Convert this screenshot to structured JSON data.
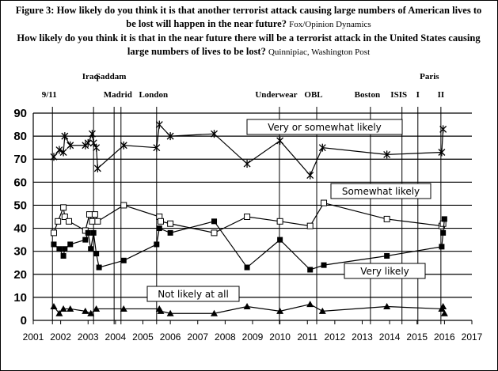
{
  "chart_data": {
    "type": "line",
    "title": "Figure 3: How likely do you think it is that another terrorist attack causing large numbers of American lives to be lost will happen in the near future?",
    "title_source": "Fox/Opinion Dynamics",
    "subtitle": "How likely do you think it is that in the near future there will be a terrorist attack in the United States causing large numbers of lives to be lost?",
    "subtitle_source": "Quinnipiac, Washington Post",
    "xlim": [
      2001,
      2017
    ],
    "xticks": [
      2001,
      2002,
      2003,
      2004,
      2005,
      2006,
      2007,
      2008,
      2009,
      2010,
      2011,
      2012,
      2013,
      2014,
      2015,
      2016,
      2017
    ],
    "ylim": [
      0,
      90
    ],
    "yticks": [
      0,
      10,
      20,
      30,
      40,
      50,
      60,
      70,
      80,
      90
    ],
    "grid": true,
    "events": [
      {
        "label": "9/11",
        "x": 2001.7
      },
      {
        "label": "Iraq",
        "x": 2003.2
      },
      {
        "label": "Saddam",
        "x": 2003.95
      },
      {
        "label": "Madrid",
        "x": 2004.2
      },
      {
        "label": "London",
        "x": 2005.5
      },
      {
        "label": "Underwear",
        "x": 2009.98
      },
      {
        "label": "OBL",
        "x": 2011.34
      },
      {
        "label": "Boston",
        "x": 2013.3
      },
      {
        "label": "ISIS",
        "x": 2014.45
      },
      {
        "label": "I",
        "x": 2015.03
      },
      {
        "label": "II",
        "x": 2015.87
      }
    ],
    "event_group_label": "Paris",
    "series": [
      {
        "name": "Very or somewhat likely",
        "color": "#000000",
        "marker": "star",
        "x": [
          2001.75,
          2001.95,
          2002.1,
          2002.15,
          2002.35,
          2002.9,
          2003.0,
          2003.15,
          2003.2,
          2003.3,
          2003.35,
          2004.3,
          2005.5,
          2005.6,
          2006.0,
          2007.6,
          2008.8,
          2010.0,
          2011.1,
          2011.55,
          2013.9,
          2015.9,
          2015.95
        ],
        "values": [
          71,
          74,
          73,
          80,
          76,
          76,
          77,
          81,
          77,
          75,
          66,
          76,
          75,
          85,
          80,
          81,
          68,
          78,
          63,
          75,
          72,
          73,
          83
        ]
      },
      {
        "name": "Somewhat likely",
        "color": "#000000",
        "marker": "open-square",
        "x": [
          2001.75,
          2001.9,
          2002.1,
          2002.15,
          2002.3,
          2002.9,
          2003.05,
          2003.15,
          2003.25,
          2003.35,
          2004.3,
          2005.6,
          2005.65,
          2006.0,
          2007.6,
          2008.8,
          2010.0,
          2011.1,
          2011.6,
          2013.9,
          2015.9,
          2015.95
        ],
        "values": [
          38,
          43,
          49,
          45,
          43,
          39,
          46,
          43,
          46,
          43,
          50,
          45,
          43,
          42,
          38,
          45,
          43,
          41,
          51,
          44,
          41,
          42
        ]
      },
      {
        "name": "Very likely",
        "color": "#000000",
        "marker": "square",
        "x": [
          2001.75,
          2001.95,
          2002.1,
          2002.15,
          2002.35,
          2002.9,
          2003.0,
          2003.1,
          2003.2,
          2003.3,
          2003.4,
          2004.3,
          2005.5,
          2005.6,
          2006.0,
          2007.6,
          2008.8,
          2010.0,
          2011.1,
          2011.6,
          2013.9,
          2015.9,
          2015.95,
          2016.0
        ],
        "values": [
          33,
          31,
          28,
          31,
          33,
          35,
          38,
          31,
          38,
          29,
          23,
          26,
          33,
          40,
          38,
          43,
          23,
          35,
          22,
          24,
          28,
          32,
          38,
          44
        ]
      },
      {
        "name": "Not likely at all",
        "color": "#000000",
        "marker": "triangle",
        "x": [
          2001.75,
          2001.95,
          2002.1,
          2002.35,
          2002.9,
          2003.1,
          2003.3,
          2004.3,
          2005.6,
          2005.65,
          2006.0,
          2007.6,
          2008.8,
          2010.0,
          2011.1,
          2011.55,
          2013.9,
          2015.9,
          2015.95,
          2016.0
        ],
        "values": [
          6,
          3,
          5,
          5,
          4,
          3,
          5,
          5,
          5,
          4,
          3,
          3,
          6,
          4,
          7,
          4,
          6,
          5,
          6,
          3
        ]
      }
    ]
  }
}
